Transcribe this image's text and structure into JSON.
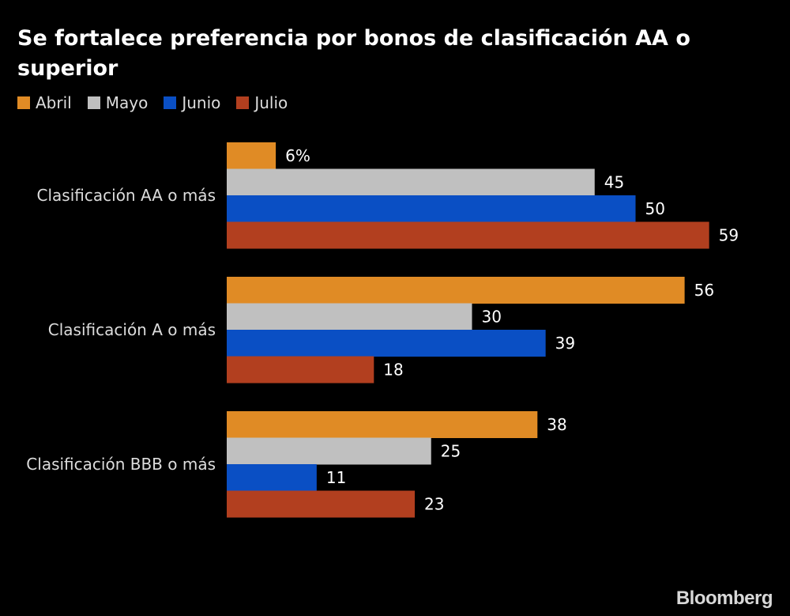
{
  "chart_data": {
    "type": "bar",
    "orientation": "horizontal",
    "title": "Se fortalece preferencia por bonos de clasificación AA o superior",
    "categories": [
      "Clasificación AA o más",
      "Clasificación A o más",
      "Clasificación BBB o más"
    ],
    "series": [
      {
        "name": "Abril",
        "color": "#e08b25",
        "values": [
          6,
          56,
          38
        ],
        "labels": [
          "6%",
          "56",
          "38"
        ]
      },
      {
        "name": "Mayo",
        "color": "#c0c0c0",
        "values": [
          45,
          30,
          25
        ],
        "labels": [
          "45",
          "30",
          "25"
        ]
      },
      {
        "name": "Junio",
        "color": "#0a4fc4",
        "values": [
          50,
          39,
          11
        ],
        "labels": [
          "50",
          "39",
          "11"
        ]
      },
      {
        "name": "Julio",
        "color": "#b23f1f",
        "values": [
          59,
          18,
          23
        ],
        "labels": [
          "59",
          "18",
          "23"
        ]
      }
    ],
    "xlim": [
      0,
      60
    ],
    "legend": "top-left",
    "grid": false
  },
  "brand": "Bloomberg"
}
